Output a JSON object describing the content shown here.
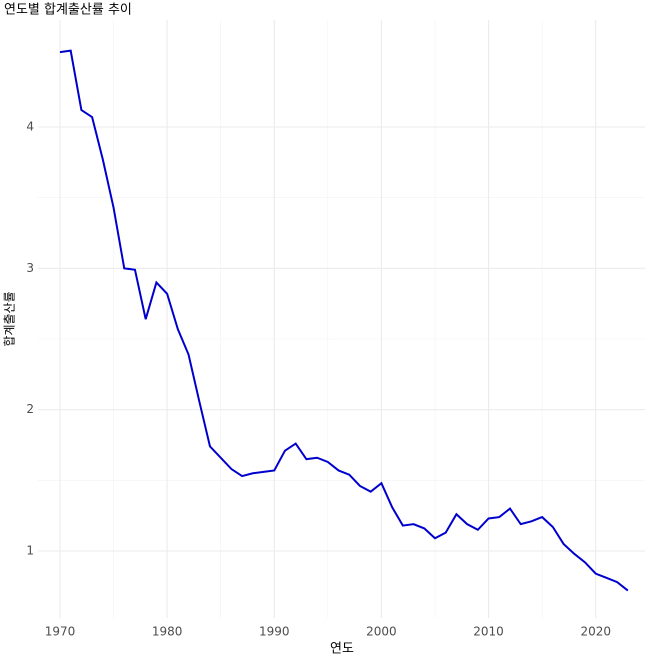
{
  "chart_data": {
    "type": "line",
    "title": "연도별 합계출산률 추이",
    "x_label": "연도",
    "y_label": "합계출산률",
    "x": [
      1970,
      1971,
      1972,
      1973,
      1974,
      1975,
      1976,
      1977,
      1978,
      1979,
      1980,
      1981,
      1982,
      1983,
      1984,
      1985,
      1986,
      1987,
      1988,
      1989,
      1990,
      1991,
      1992,
      1993,
      1994,
      1995,
      1996,
      1997,
      1998,
      1999,
      2000,
      2001,
      2002,
      2003,
      2004,
      2005,
      2006,
      2007,
      2008,
      2009,
      2010,
      2011,
      2012,
      2013,
      2014,
      2015,
      2016,
      2017,
      2018,
      2019,
      2020,
      2021,
      2022,
      2023
    ],
    "series": [
      {
        "name": "합계출산률",
        "color": "#0000cd",
        "values": [
          4.53,
          4.54,
          4.12,
          4.07,
          3.77,
          3.43,
          3.0,
          2.99,
          2.64,
          2.9,
          2.82,
          2.57,
          2.39,
          2.06,
          1.74,
          1.66,
          1.58,
          1.53,
          1.55,
          1.56,
          1.57,
          1.71,
          1.76,
          1.65,
          1.66,
          1.63,
          1.57,
          1.54,
          1.46,
          1.42,
          1.48,
          1.31,
          1.18,
          1.19,
          1.16,
          1.09,
          1.13,
          1.26,
          1.19,
          1.15,
          1.23,
          1.24,
          1.3,
          1.19,
          1.21,
          1.24,
          1.17,
          1.05,
          0.98,
          0.92,
          0.84,
          0.81,
          0.78,
          0.72
        ]
      }
    ],
    "xlim": [
      1967.95,
      2024.6
    ],
    "ylim": [
      0.526,
      4.757
    ],
    "xticks": [
      1970,
      1980,
      1990,
      2000,
      2010,
      2020
    ],
    "yticks": [
      1,
      2,
      3,
      4
    ],
    "grid": true
  }
}
